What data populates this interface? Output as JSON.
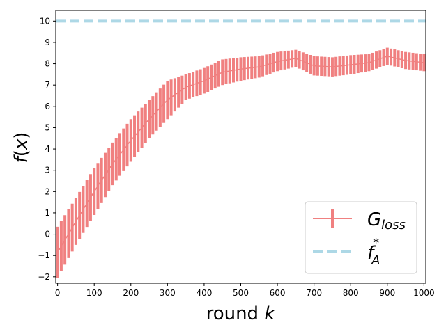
{
  "chart_data": {
    "type": "line",
    "title": "",
    "xlabel_main": "round ",
    "xlabel_var": "k",
    "ylabel_func": "f",
    "ylabel_open": "(",
    "ylabel_var": "x",
    "ylabel_close": ")",
    "xlim": [
      -5,
      1005
    ],
    "ylim": [
      -2.3,
      10.5
    ],
    "xticks": [
      0,
      100,
      200,
      300,
      400,
      500,
      600,
      700,
      800,
      900,
      1000
    ],
    "yticks": [
      -2,
      -1,
      0,
      1,
      2,
      3,
      4,
      5,
      6,
      7,
      8,
      9,
      10
    ],
    "grid": false,
    "legend_position": "lower-right",
    "colors": {
      "g_loss": "#f08080",
      "f_star": "#add8e6"
    },
    "series": [
      {
        "name_main": "G",
        "name_sub": "loss",
        "style": "errorbar-line",
        "x": [
          0,
          50,
          100,
          150,
          200,
          250,
          300,
          350,
          400,
          450,
          500,
          550,
          600,
          650,
          700,
          750,
          800,
          850,
          900,
          950,
          1000
        ],
        "y": [
          -0.85,
          0.6,
          2.0,
          3.3,
          4.4,
          5.4,
          6.3,
          6.9,
          7.2,
          7.6,
          7.75,
          7.85,
          8.1,
          8.25,
          7.9,
          7.85,
          7.95,
          8.05,
          8.35,
          8.15,
          8.05
        ],
        "error": [
          1.2,
          1.1,
          1.1,
          1.0,
          1.0,
          0.9,
          0.9,
          0.6,
          0.6,
          0.6,
          0.55,
          0.5,
          0.45,
          0.4,
          0.45,
          0.45,
          0.45,
          0.4,
          0.4,
          0.4,
          0.4
        ]
      },
      {
        "name_main": "f",
        "name_sup": "*",
        "name_sub": "A",
        "style": "dashed",
        "x": [
          -5,
          1005
        ],
        "y": [
          10.0,
          10.0
        ]
      }
    ]
  }
}
